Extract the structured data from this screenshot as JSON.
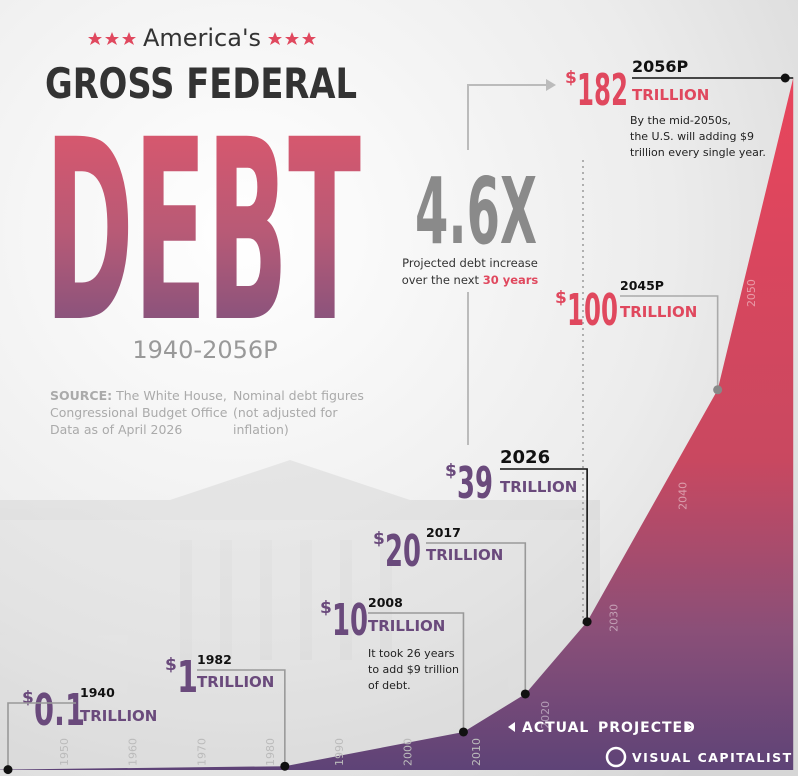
{
  "chart_data": {
    "type": "area",
    "title_kicker": "America's",
    "title": "GROSS FEDERAL",
    "title_emphasis": "DEBT",
    "subtitle": "1940-2056P",
    "source_label": "SOURCE:",
    "source_text": [
      "The White House,",
      "Congressional Budget Office",
      "Data as of April 2026"
    ],
    "note": [
      "Nominal debt figures",
      "(not adjusted for",
      "inflation)"
    ],
    "x": [
      1940,
      1982,
      2008,
      2017,
      2026,
      2045,
      2056
    ],
    "x_labels": [
      "1940",
      "1982",
      "2008",
      "2017",
      "2026",
      "2045P",
      "2056P"
    ],
    "values": [
      0.1,
      1,
      10,
      20,
      39,
      100,
      182
    ],
    "currency_symbol": "$",
    "unit_label": "TRILLION",
    "xticks": [
      1950,
      1960,
      1970,
      1980,
      1990,
      2000,
      2010,
      2020,
      2030,
      2040,
      2050
    ],
    "colors": {
      "actual": "#6a4a7c",
      "projected": "#e0485e"
    },
    "highlight": {
      "value": "4.6X",
      "lines": [
        "Projected debt increase",
        "over the next"
      ],
      "emphasis": "30 years"
    },
    "annotations": [
      {
        "at": 2,
        "lines": [
          "It took 26 years",
          "to add $9 trillion",
          "of debt."
        ]
      },
      {
        "at": 6,
        "lines": [
          "By the mid-2050s,",
          "the U.S. will adding $9",
          "trillion every single year."
        ]
      }
    ],
    "phase_labels": [
      "ACTUAL",
      "PROJECTED"
    ],
    "brand": "VISUAL CAPITALIST"
  }
}
